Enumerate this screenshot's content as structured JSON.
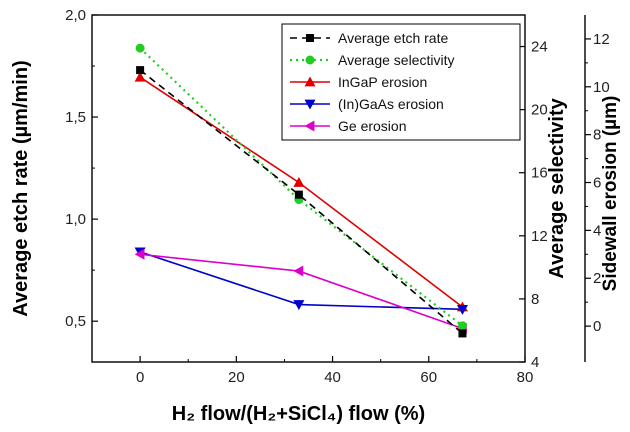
{
  "chart_data": {
    "type": "line",
    "xlabel": "H₂ flow/(H₂+SiCl₄) flow (%)",
    "x_ticks": [
      "0",
      "20",
      "40",
      "60",
      "80"
    ],
    "xlim": [
      -10,
      80
    ],
    "axes": {
      "left": {
        "label": "Average etch rate (µm/min)",
        "lim": [
          0.3,
          2.0
        ],
        "ticks": [
          "0,5",
          "1,0",
          "1,5",
          "2,0"
        ],
        "tick_values": [
          0.5,
          1.0,
          1.5,
          2.0
        ]
      },
      "right1": {
        "label": "Average selectivity",
        "lim": [
          4,
          26
        ],
        "ticks": [
          "4",
          "8",
          "12",
          "16",
          "20",
          "24"
        ],
        "tick_values": [
          4,
          8,
          12,
          16,
          20,
          24
        ]
      },
      "right2": {
        "label": "Sidewall erosion (µm)",
        "lim": [
          -1.5,
          13
        ],
        "ticks": [
          "0",
          "2",
          "4",
          "6",
          "8",
          "10",
          "12"
        ],
        "tick_values": [
          0,
          2,
          4,
          6,
          8,
          10,
          12
        ]
      }
    },
    "series": [
      {
        "name": "Average etch rate",
        "axis": "left",
        "x": [
          0,
          33,
          67
        ],
        "y": [
          1.73,
          1.12,
          0.44
        ],
        "color": "#000000",
        "dash": "7,5",
        "marker": "square"
      },
      {
        "name": "Average selectivity",
        "axis": "right1",
        "x": [
          0,
          33,
          67
        ],
        "y": [
          23.9,
          14.3,
          6.3
        ],
        "color": "#22cc22",
        "dash": "2,4",
        "marker": "circle"
      },
      {
        "name": "InGaP erosion",
        "axis": "right2",
        "x": [
          0,
          33,
          67
        ],
        "y": [
          10.4,
          6.0,
          0.8
        ],
        "color": "#e00000",
        "dash": "",
        "marker": "triangle-up"
      },
      {
        "name": "(In)GaAs erosion",
        "axis": "right2",
        "x": [
          0,
          33,
          67
        ],
        "y": [
          3.1,
          0.9,
          0.7
        ],
        "color": "#0000cc",
        "dash": "",
        "marker": "triangle-down"
      },
      {
        "name": "Ge erosion",
        "axis": "right2",
        "x": [
          0,
          33,
          67
        ],
        "y": [
          3.0,
          2.3,
          -0.1
        ],
        "color": "#dd00cc",
        "dash": "",
        "marker": "triangle-left"
      }
    ],
    "legend_position": "top-right",
    "grid": false
  }
}
